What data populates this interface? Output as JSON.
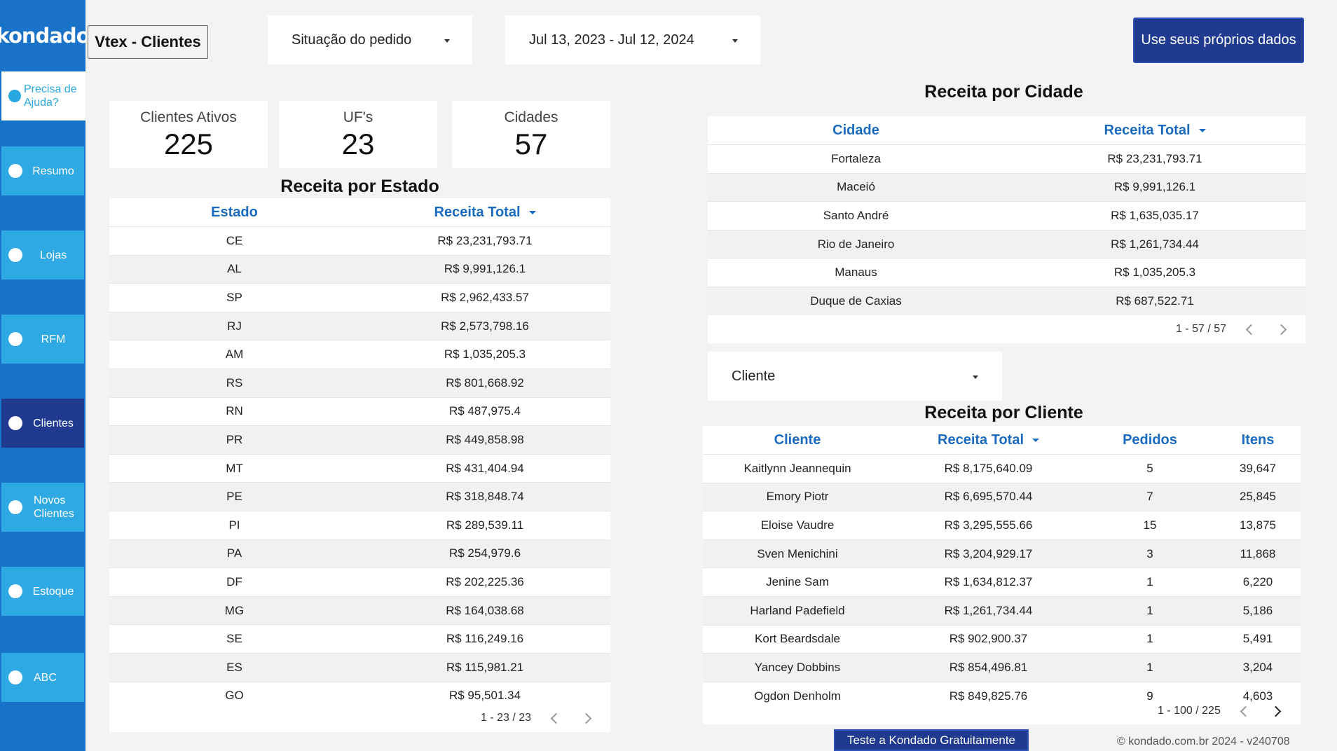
{
  "sidebar": {
    "logo": "kondado",
    "help": "Precisa de Ajuda?",
    "items": [
      {
        "label": "Resumo",
        "active": false
      },
      {
        "label": "Lojas",
        "active": false
      },
      {
        "label": "RFM",
        "active": false
      },
      {
        "label": "Clientes",
        "active": true
      },
      {
        "label": "Novos Clientes",
        "active": false
      },
      {
        "label": "Estoque",
        "active": false
      },
      {
        "label": "ABC",
        "active": false
      }
    ]
  },
  "header": {
    "title": "Vtex - Clientes",
    "status_filter": "Situação do pedido",
    "date_range": "Jul 13, 2023 - Jul 12, 2024",
    "cta": "Use seus próprios dados"
  },
  "kpis": [
    {
      "label": "Clientes Ativos",
      "value": "225"
    },
    {
      "label": "UF's",
      "value": "23"
    },
    {
      "label": "Cidades",
      "value": "57"
    }
  ],
  "estado": {
    "title": "Receita por Estado",
    "headers": [
      "Estado",
      "Receita Total"
    ],
    "rows": [
      [
        "CE",
        "R$ 23,231,793.71"
      ],
      [
        "AL",
        "R$ 9,991,126.1"
      ],
      [
        "SP",
        "R$ 2,962,433.57"
      ],
      [
        "RJ",
        "R$ 2,573,798.16"
      ],
      [
        "AM",
        "R$ 1,035,205.3"
      ],
      [
        "RS",
        "R$ 801,668.92"
      ],
      [
        "RN",
        "R$ 487,975.4"
      ],
      [
        "PR",
        "R$ 449,858.98"
      ],
      [
        "MT",
        "R$ 431,404.94"
      ],
      [
        "PE",
        "R$ 318,848.74"
      ],
      [
        "PI",
        "R$ 289,539.11"
      ],
      [
        "PA",
        "R$ 254,979.6"
      ],
      [
        "DF",
        "R$ 202,225.36"
      ],
      [
        "MG",
        "R$ 164,038.68"
      ],
      [
        "SE",
        "R$ 116,249.16"
      ],
      [
        "ES",
        "R$ 115,981.21"
      ],
      [
        "GO",
        "R$ 95,501.34"
      ]
    ],
    "pager": "1 - 23 / 23"
  },
  "cidade": {
    "title": "Receita por Cidade",
    "headers": [
      "Cidade",
      "Receita Total"
    ],
    "rows": [
      [
        "Fortaleza",
        "R$ 23,231,793.71"
      ],
      [
        "Maceió",
        "R$ 9,991,126.1"
      ],
      [
        "Santo André",
        "R$ 1,635,035.17"
      ],
      [
        "Rio de Janeiro",
        "R$ 1,261,734.44"
      ],
      [
        "Manaus",
        "R$ 1,035,205.3"
      ],
      [
        "Duque de Caxias",
        "R$ 687,522.71"
      ]
    ],
    "pager": "1 - 57 / 57"
  },
  "cliente_filter": "Cliente",
  "cliente": {
    "title": "Receita por Cliente",
    "headers": [
      "Cliente",
      "Receita Total",
      "Pedidos",
      "Itens"
    ],
    "rows": [
      [
        "Kaitlynn Jeannequin",
        "R$ 8,175,640.09",
        "5",
        "39,647"
      ],
      [
        "Emory Piotr",
        "R$ 6,695,570.44",
        "7",
        "25,845"
      ],
      [
        "Eloise Vaudre",
        "R$ 3,295,555.66",
        "15",
        "13,875"
      ],
      [
        "Sven Menichini",
        "R$ 3,204,929.17",
        "3",
        "11,868"
      ],
      [
        "Jenine Sam",
        "R$ 1,634,812.37",
        "1",
        "6,220"
      ],
      [
        "Harland Padefield",
        "R$ 1,261,734.44",
        "1",
        "5,186"
      ],
      [
        "Kort Beardsdale",
        "R$ 902,900.37",
        "1",
        "5,491"
      ],
      [
        "Yancey Dobbins",
        "R$ 854,496.81",
        "1",
        "3,204"
      ],
      [
        "Ogdon Denholm",
        "R$ 849,825.76",
        "9",
        "4,603"
      ]
    ],
    "pager": "1 - 100 / 225"
  },
  "footer": {
    "trial_button": "Teste a Kondado Gratuitamente",
    "copyright": "© kondado.com.br 2024 - v240708"
  }
}
